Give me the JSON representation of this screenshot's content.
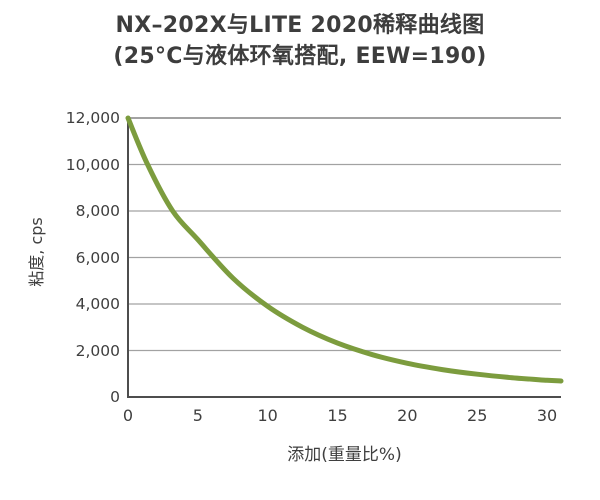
{
  "chart": {
    "title_line1": "NX–202X与LITE 2020稀释曲线图",
    "title_line2": "(25°C与液体环氧搭配, EEW=190)",
    "ylabel": "粘度, cps",
    "xlabel": "添加(重量比%)"
  },
  "chart_data": {
    "type": "line",
    "title": "NX–202X与LITE 2020稀释曲线图 (25°C与液体环氧搭配, EEW=190)",
    "xlabel": "添加(重量比%)",
    "ylabel": "粘度, cps",
    "xlim": [
      0,
      31
    ],
    "ylim": [
      0,
      12000
    ],
    "xticks": [
      0,
      5,
      10,
      15,
      20,
      25,
      30
    ],
    "xtick_labels": [
      "0",
      "5",
      "10",
      "15",
      "20",
      "25",
      "30"
    ],
    "yticks": [
      0,
      2000,
      4000,
      6000,
      8000,
      10000,
      12000
    ],
    "ytick_labels": [
      "0",
      "2,000",
      "4,000",
      "6,000",
      "8,000",
      "10,000",
      "12,000"
    ],
    "grid": "horizontal-only",
    "legend": "none",
    "series": [
      {
        "name": "NX-202X/LITE-2020 dilution curve",
        "x": [
          0,
          1.4,
          3.2,
          5,
          7.5,
          10,
          12.5,
          15,
          17.5,
          20,
          22.5,
          25,
          27.5,
          30,
          31
        ],
        "y": [
          12000,
          10000,
          8000,
          6770,
          5120,
          3900,
          3000,
          2320,
          1820,
          1450,
          1180,
          980,
          830,
          720,
          690
        ],
        "color": "#7C9C3E"
      }
    ]
  },
  "colors": {
    "line": "#7C9C3E",
    "grid": "#A2A2A2",
    "axis": "#4D4D4D",
    "text": "#3D3D3D",
    "background": "#FFFFFF"
  }
}
